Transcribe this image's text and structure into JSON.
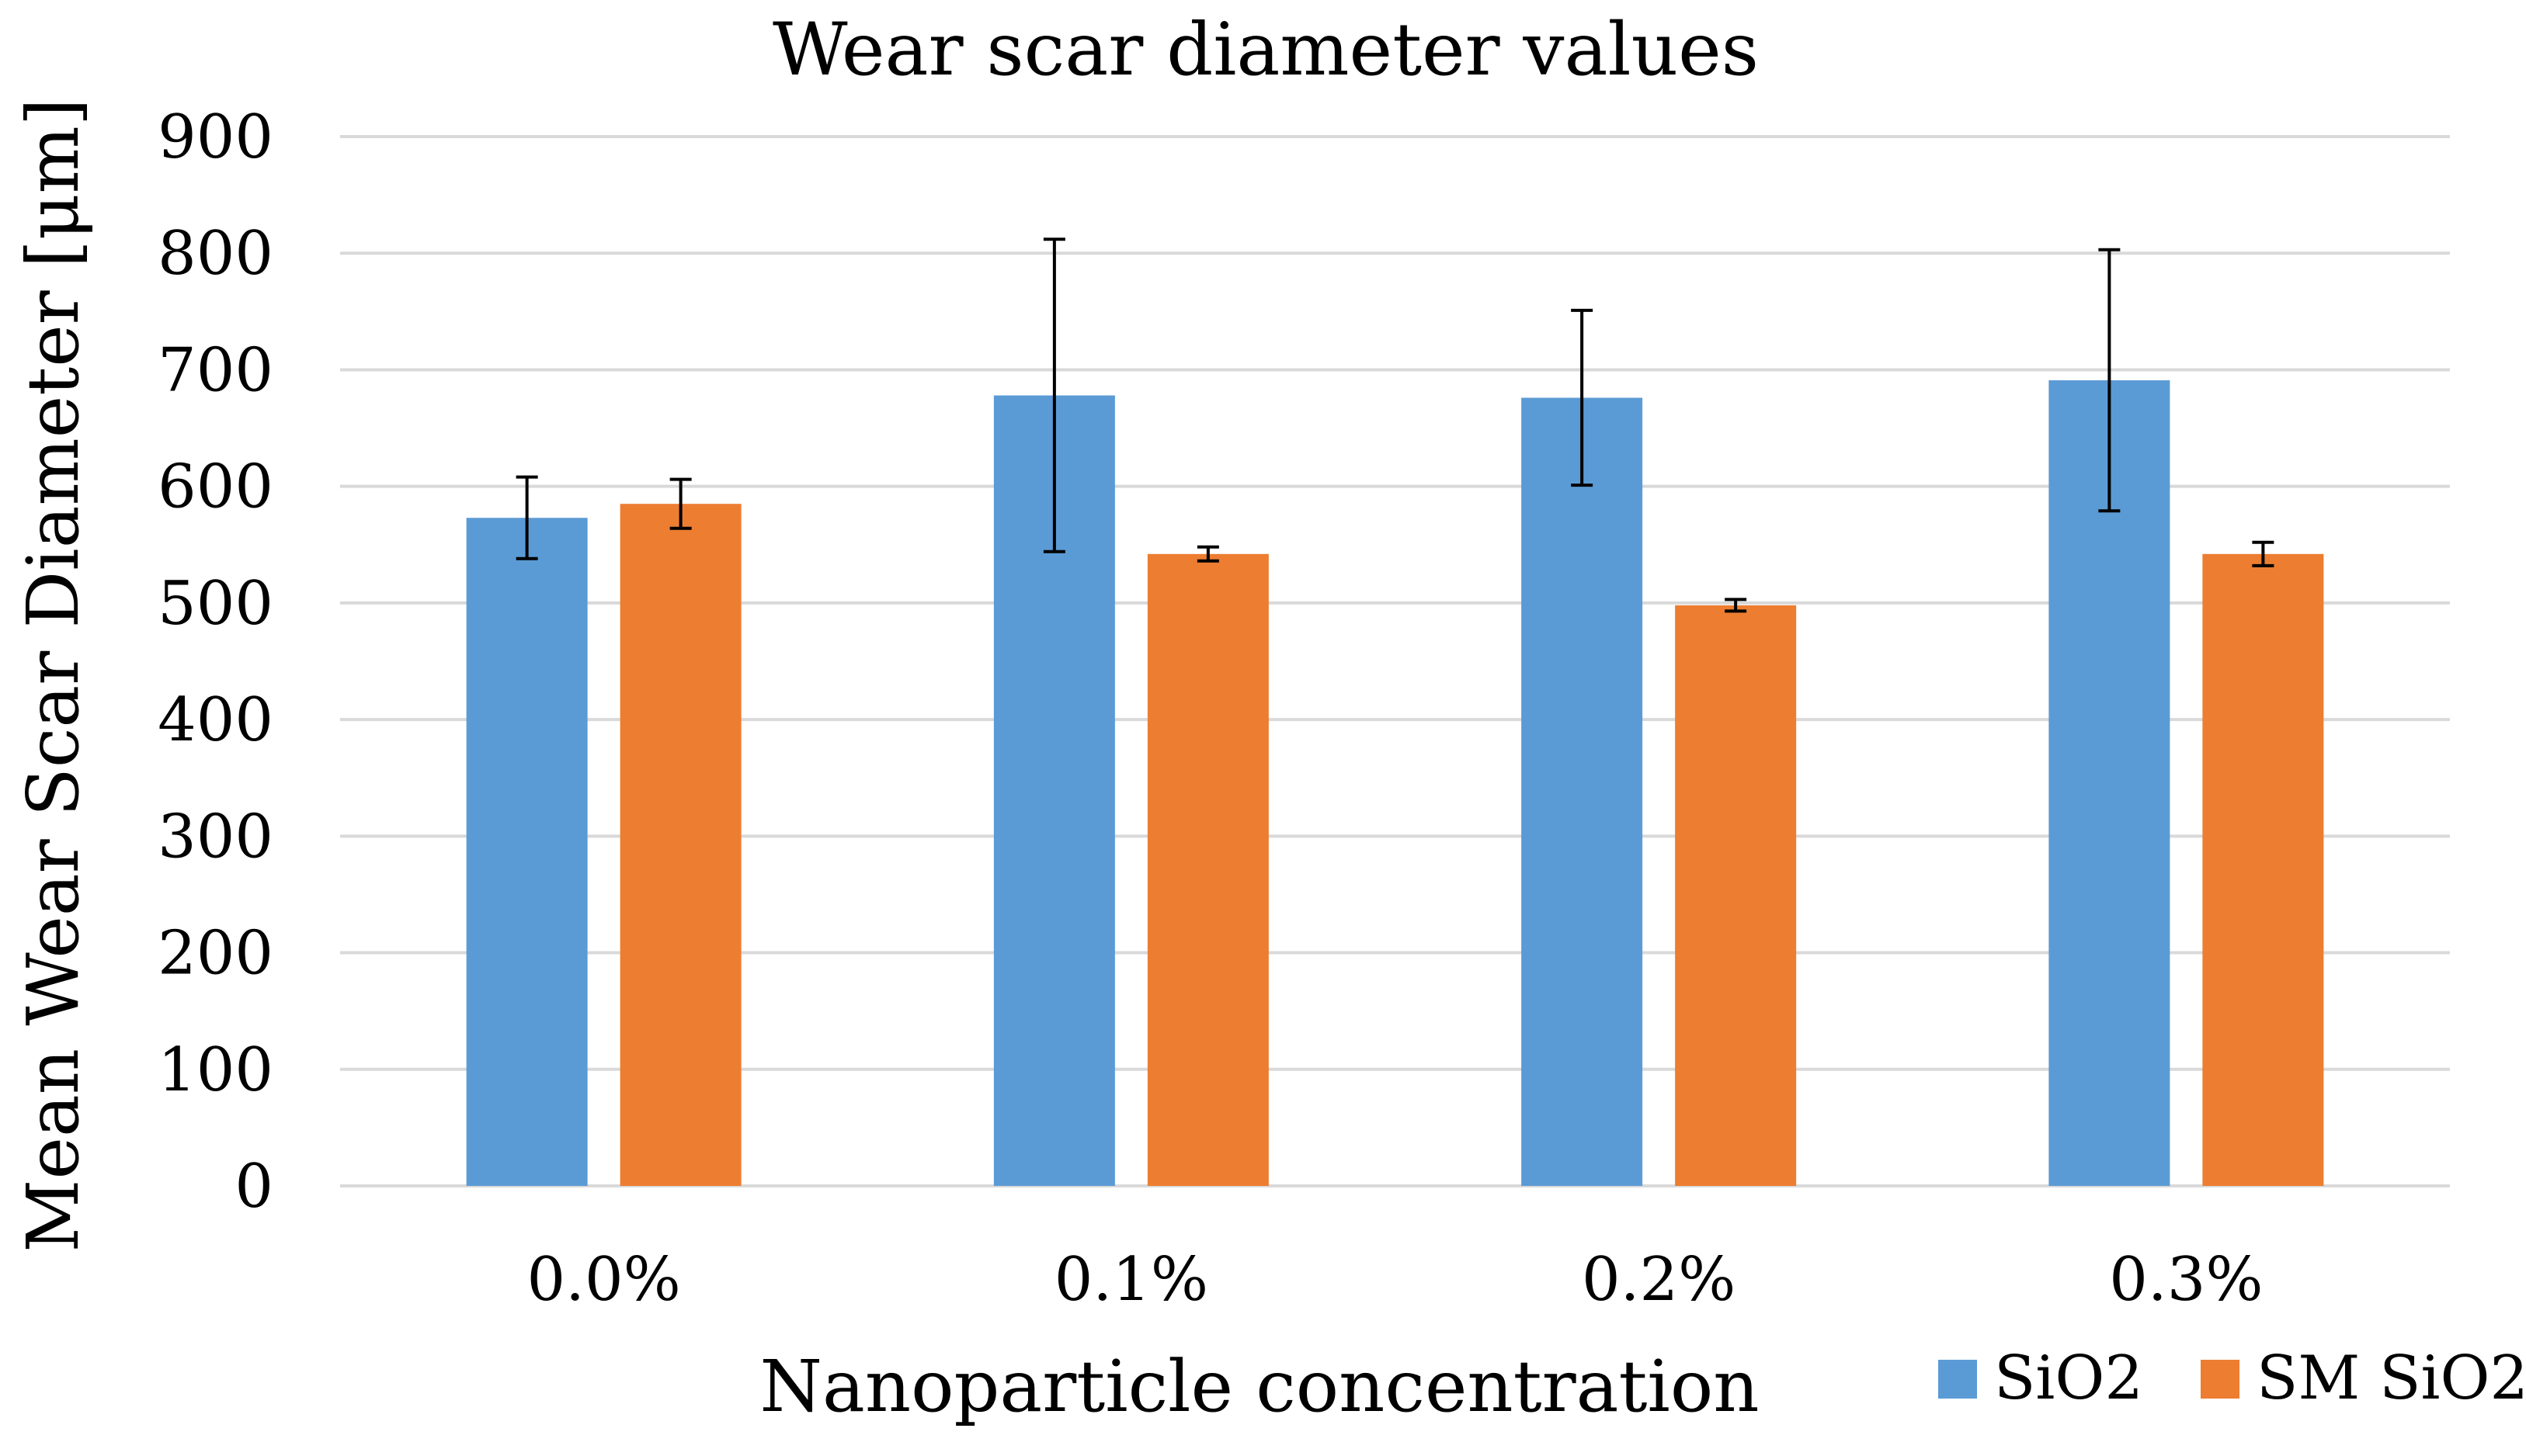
{
  "chart_data": {
    "type": "bar",
    "title": "Wear scar diameter values",
    "xlabel": "Nanoparticle concentration",
    "ylabel": "Mean Wear Scar Diameter [μm]",
    "categories": [
      "0.0%",
      "0.1%",
      "0.2%",
      "0.3%"
    ],
    "ylim": [
      0,
      900
    ],
    "yticks": [
      0,
      100,
      200,
      300,
      400,
      500,
      600,
      700,
      800,
      900
    ],
    "grid": true,
    "legend_position": "bottom-right",
    "series": [
      {
        "name": "SiO2",
        "color": "#5b9bd5",
        "values": [
          573,
          678,
          676,
          691
        ],
        "error": [
          35,
          134,
          75,
          112
        ]
      },
      {
        "name": "SM SiO2",
        "color": "#ed7d31",
        "values": [
          585,
          542,
          498,
          542
        ],
        "error": [
          21,
          6,
          5,
          10
        ]
      }
    ]
  }
}
